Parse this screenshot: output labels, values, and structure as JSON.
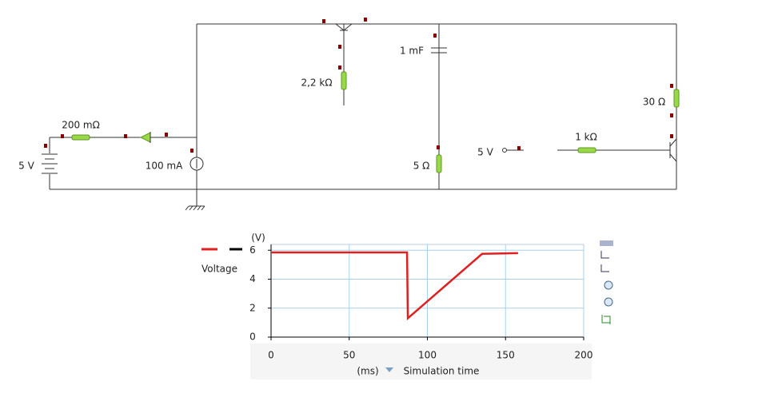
{
  "circuit": {
    "labels": [
      "200 mΩ",
      "5 V",
      "100 mA",
      "2,2 kΩ",
      "1 mF",
      "5 Ω",
      "5 V",
      "1 kΩ",
      "30 Ω"
    ]
  },
  "chart_data": {
    "type": "line",
    "legend_title": "Voltage",
    "y_unit": "(V)",
    "x_unit": "(ms)",
    "x_label": "Simulation time",
    "x": [
      0,
      87,
      87.5,
      135,
      158
    ],
    "series": [
      {
        "name": "Voltage",
        "color": "#e02020",
        "values": [
          5.85,
          5.85,
          1.3,
          5.75,
          5.8
        ]
      }
    ],
    "xlim": [
      0,
      200
    ],
    "xticks": [
      0,
      50,
      100,
      150,
      200
    ],
    "ylim": [
      0,
      6.4
    ],
    "yticks": [
      0,
      2,
      4,
      6
    ],
    "grid": true
  }
}
